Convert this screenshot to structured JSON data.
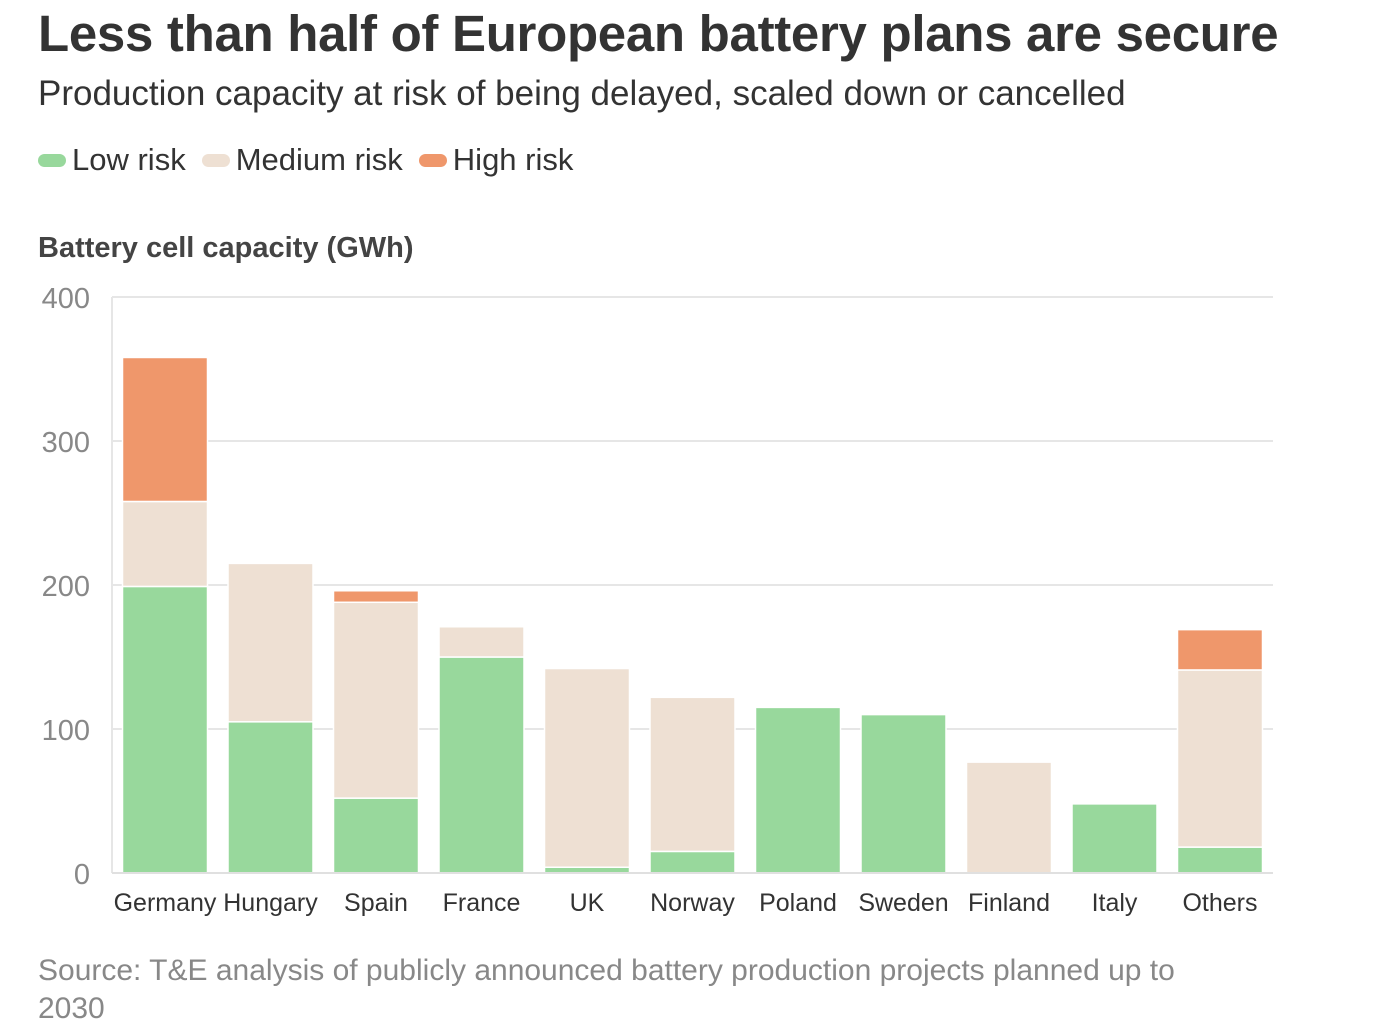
{
  "header": {
    "title": "Less than half of European battery plans are secure",
    "subtitle": "Production capacity at risk of being delayed, scaled down or cancelled"
  },
  "legend": [
    {
      "label": "Low risk",
      "color": "#98d89c"
    },
    {
      "label": "Medium risk",
      "color": "#eee0d3"
    },
    {
      "label": "High risk",
      "color": "#ef976b"
    }
  ],
  "footer": {
    "source": "Source: T&E analysis of publicly announced battery production projects planned up to 2030"
  },
  "chart_data": {
    "type": "bar",
    "stacked": true,
    "title": "Less than half of European battery plans are secure",
    "subtitle": "Production capacity at risk of being delayed, scaled down or cancelled",
    "xlabel": "",
    "ylabel": "Battery cell capacity (GWh)",
    "ylim": [
      0,
      400
    ],
    "yticks": [
      0,
      100,
      200,
      300,
      400
    ],
    "grid": true,
    "legend_position": "top-left",
    "categories": [
      "Germany",
      "Hungary",
      "Spain",
      "France",
      "UK",
      "Norway",
      "Poland",
      "Sweden",
      "Finland",
      "Italy",
      "Others"
    ],
    "series": [
      {
        "name": "Low risk",
        "color": "#98d89c",
        "values": [
          199,
          105,
          52,
          150,
          4,
          15,
          115,
          110,
          0,
          48,
          18
        ]
      },
      {
        "name": "Medium risk",
        "color": "#eee0d3",
        "values": [
          59,
          110,
          136,
          21,
          138,
          107,
          0,
          0,
          77,
          0,
          123
        ]
      },
      {
        "name": "High risk",
        "color": "#ef976b",
        "values": [
          100,
          0,
          8,
          0,
          0,
          0,
          0,
          0,
          0,
          0,
          28
        ]
      }
    ]
  }
}
